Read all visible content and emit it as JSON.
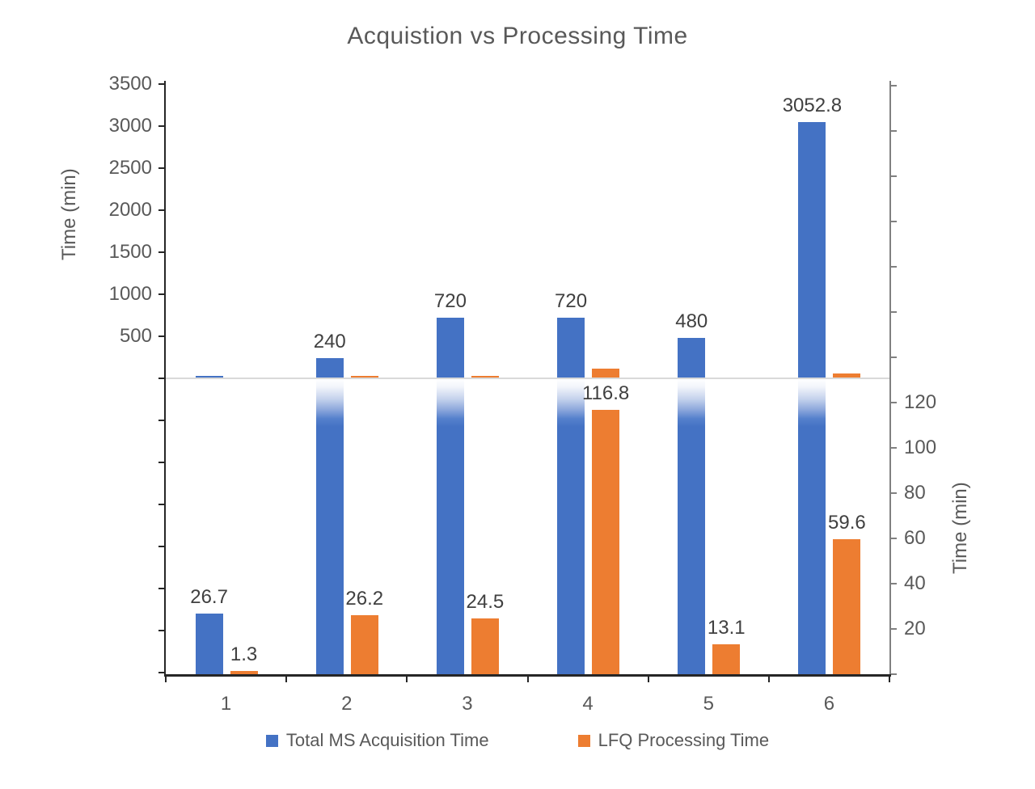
{
  "title": "Acquistion vs Processing Time",
  "axes": {
    "left": {
      "title": "Time (min)",
      "tick_labels": [
        "500",
        "1000",
        "1500",
        "2000",
        "2500",
        "3000",
        "3500"
      ]
    },
    "right": {
      "title": "Time (min)",
      "tick_labels": [
        "20",
        "40",
        "60",
        "80",
        "100",
        "120"
      ]
    },
    "bottom": {
      "categories": [
        "1",
        "2",
        "3",
        "4",
        "5",
        "6"
      ]
    }
  },
  "legend": {
    "items": [
      {
        "label": "Total MS Acquisition Time",
        "color": "#4472C4"
      },
      {
        "label": "LFQ Processing Time",
        "color": "#ED7D31"
      }
    ]
  },
  "colors": {
    "acquisition": "#4472C4",
    "processing": "#ED7D31",
    "gridline": "#D9D9D9",
    "axis_line": "#262626",
    "right_axis_line": "#808080",
    "axis_text": "#595959",
    "data_label_text": "#404040"
  },
  "chart_data": {
    "type": "bar",
    "title": "Acquistion vs Processing Time",
    "categories": [
      "1",
      "2",
      "3",
      "4",
      "5",
      "6"
    ],
    "series": [
      {
        "name": "Total MS Acquisition Time",
        "color": "#4472C4",
        "values": [
          26.7,
          240,
          720,
          720,
          480,
          3052.8
        ]
      },
      {
        "name": "LFQ Processing Time",
        "color": "#ED7D31",
        "values": [
          1.3,
          26.2,
          24.5,
          116.8,
          13.1,
          59.6
        ]
      }
    ],
    "data_labels": {
      "Total MS Acquisition Time": [
        "26.7",
        "240",
        "720",
        "720",
        "480",
        "3052.8"
      ],
      "LFQ Processing Time": [
        "1.3",
        "26.2",
        "24.5",
        "116.8",
        "13.1",
        "59.6"
      ]
    },
    "primary_axis": {
      "label": "Time (min)",
      "min": 0,
      "max": 3500,
      "step": 500,
      "side": "left"
    },
    "secondary_axis": {
      "label": "Time (min)",
      "min": 0,
      "max": 130,
      "step": 20,
      "side": "right"
    },
    "legend_position": "bottom",
    "grid": "single light horizontal divider line at the junction of the two panels",
    "layout": "split dual-scale chart: top panel plots both series on the primary axis (0-3500), bottom panel plots both series on the secondary axis; bars exceeding the bottom panel are clipped with a white fade below the divider; labels appear next to the panel where the bar fits"
  }
}
